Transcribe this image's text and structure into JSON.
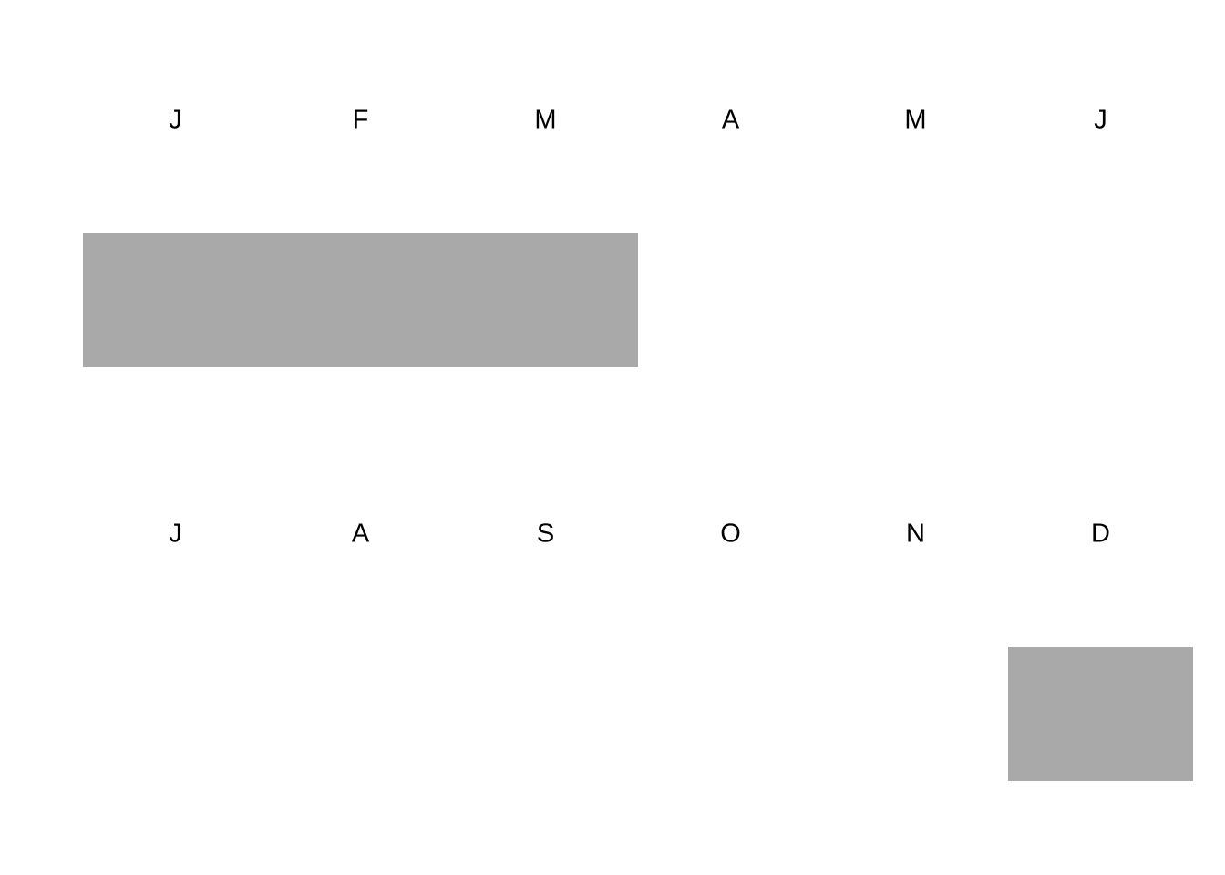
{
  "chart_data": {
    "type": "heatmap",
    "title": "",
    "months": [
      {
        "label": "J",
        "active": true
      },
      {
        "label": "F",
        "active": true
      },
      {
        "label": "M",
        "active": true
      },
      {
        "label": "A",
        "active": false
      },
      {
        "label": "M",
        "active": false
      },
      {
        "label": "J",
        "active": false
      },
      {
        "label": "J",
        "active": false
      },
      {
        "label": "A",
        "active": false
      },
      {
        "label": "S",
        "active": false
      },
      {
        "label": "O",
        "active": false
      },
      {
        "label": "N",
        "active": false
      },
      {
        "label": "D",
        "active": true
      }
    ],
    "rows": 2,
    "columns_per_row": 6,
    "active_color": "#a9a9a9",
    "background_color": "#ffffff",
    "label_color": "#000000"
  }
}
